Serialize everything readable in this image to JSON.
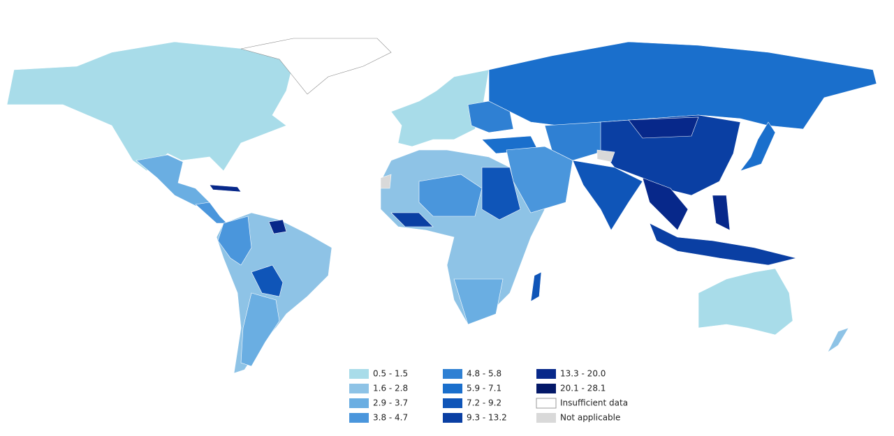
{
  "legend": {
    "items": [
      {
        "label": "0.5 - 1.5",
        "color": "#a8dce9"
      },
      {
        "label": "1.6 - 2.8",
        "color": "#8ec3e6"
      },
      {
        "label": "2.9 - 3.7",
        "color": "#6aaee2"
      },
      {
        "label": "3.8 - 4.7",
        "color": "#4a96dc"
      },
      {
        "label": "4.8 - 5.8",
        "color": "#2f80d3"
      },
      {
        "label": "5.9 - 7.1",
        "color": "#1a6fcc"
      },
      {
        "label": "7.2 - 9.2",
        "color": "#0f55b8"
      },
      {
        "label": "9.3 - 13.2",
        "color": "#0a3fa3"
      },
      {
        "label": "13.3 - 20.0",
        "color": "#07288a"
      },
      {
        "label": "20.1 - 28.1",
        "color": "#031868"
      },
      {
        "label": "Insufficient data",
        "color": "#ffffff"
      },
      {
        "label": "Not applicable",
        "color": "#d9d9d9"
      }
    ]
  }
}
